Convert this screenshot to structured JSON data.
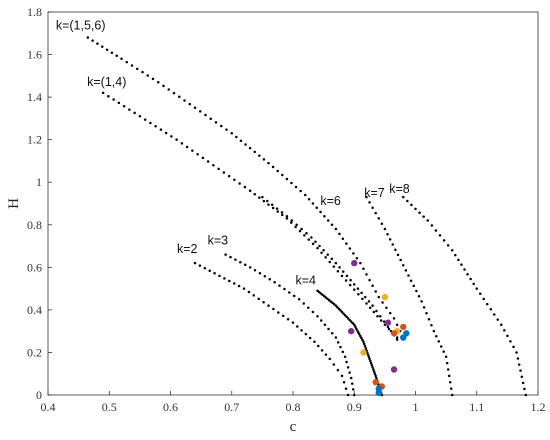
{
  "chart_data": {
    "type": "scatter",
    "title": "",
    "xlabel": "c",
    "ylabel": "H",
    "xlim": [
      0.4,
      1.2
    ],
    "ylim": [
      0,
      1.8
    ],
    "xticks": [
      "0.4",
      "0.5",
      "0.6",
      "0.7",
      "0.8",
      "0.9",
      "1",
      "1.1",
      "1.2"
    ],
    "yticks": [
      "0",
      "0.2",
      "0.4",
      "0.6",
      "0.8",
      "1",
      "1.2",
      "1.4",
      "1.6",
      "1.8"
    ],
    "grid": false,
    "series": [
      {
        "name": "k=(1,5,6)",
        "points": [
          [
            0.465,
            1.68
          ],
          [
            0.52,
            1.58
          ],
          [
            0.58,
            1.47
          ],
          [
            0.64,
            1.35
          ],
          [
            0.7,
            1.23
          ],
          [
            0.76,
            1.09
          ],
          [
            0.82,
            0.94
          ],
          [
            0.87,
            0.78
          ],
          [
            0.91,
            0.62
          ],
          [
            0.94,
            0.46
          ],
          [
            0.965,
            0.36
          ],
          [
            0.975,
            0.3
          ]
        ]
      },
      {
        "name": "k=(1,4)",
        "points": [
          [
            0.49,
            1.42
          ],
          [
            0.55,
            1.31
          ],
          [
            0.61,
            1.2
          ],
          [
            0.67,
            1.08
          ],
          [
            0.73,
            0.96
          ],
          [
            0.79,
            0.83
          ],
          [
            0.84,
            0.69
          ],
          [
            0.88,
            0.56
          ],
          [
            0.92,
            0.43
          ],
          [
            0.95,
            0.33
          ],
          [
            0.97,
            0.27
          ]
        ]
      },
      {
        "name": "k=2",
        "points": [
          [
            0.64,
            0.62
          ],
          [
            0.68,
            0.56
          ],
          [
            0.72,
            0.5
          ],
          [
            0.76,
            0.42
          ],
          [
            0.8,
            0.34
          ],
          [
            0.835,
            0.25
          ],
          [
            0.86,
            0.17
          ],
          [
            0.88,
            0.09
          ],
          [
            0.89,
            0.0
          ]
        ]
      },
      {
        "name": "k=3",
        "points": [
          [
            0.69,
            0.66
          ],
          [
            0.73,
            0.6
          ],
          [
            0.77,
            0.53
          ],
          [
            0.81,
            0.45
          ],
          [
            0.84,
            0.37
          ],
          [
            0.87,
            0.27
          ],
          [
            0.885,
            0.18
          ],
          [
            0.895,
            0.08
          ],
          [
            0.9,
            0.0
          ]
        ]
      },
      {
        "name": "k=4",
        "points": [
          [
            0.84,
            0.49
          ],
          [
            0.87,
            0.42
          ],
          [
            0.9,
            0.33
          ],
          [
            0.915,
            0.25
          ],
          [
            0.925,
            0.17
          ],
          [
            0.935,
            0.09
          ],
          [
            0.945,
            0.0
          ]
        ]
      },
      {
        "name": "k=6",
        "points": [
          [
            0.75,
            0.93
          ],
          [
            0.79,
            0.84
          ],
          [
            0.83,
            0.74
          ],
          [
            0.87,
            0.62
          ],
          [
            0.9,
            0.52
          ],
          [
            0.93,
            0.42
          ],
          [
            0.955,
            0.32
          ],
          [
            0.97,
            0.26
          ]
        ]
      },
      {
        "name": "k=7",
        "points": [
          [
            0.92,
            0.93
          ],
          [
            0.95,
            0.78
          ],
          [
            0.98,
            0.61
          ],
          [
            1.01,
            0.44
          ],
          [
            1.03,
            0.3
          ],
          [
            1.05,
            0.18
          ],
          [
            1.06,
            0.0
          ]
        ]
      },
      {
        "name": "k=8",
        "points": [
          [
            0.98,
            0.93
          ],
          [
            1.02,
            0.82
          ],
          [
            1.06,
            0.68
          ],
          [
            1.1,
            0.5
          ],
          [
            1.14,
            0.33
          ],
          [
            1.165,
            0.2
          ],
          [
            1.18,
            0.0
          ]
        ]
      }
    ],
    "markers": [
      {
        "color": "#7e2f8e",
        "points": [
          [
            0.9,
            0.62
          ],
          [
            0.895,
            0.3
          ],
          [
            0.955,
            0.34
          ],
          [
            0.965,
            0.12
          ]
        ]
      },
      {
        "color": "#edb120",
        "points": [
          [
            0.95,
            0.46
          ],
          [
            0.915,
            0.2
          ],
          [
            0.97,
            0.3
          ]
        ]
      },
      {
        "color": "#d95319",
        "points": [
          [
            0.98,
            0.32
          ],
          [
            0.935,
            0.06
          ],
          [
            0.945,
            0.04
          ],
          [
            0.965,
            0.29
          ]
        ]
      },
      {
        "color": "#0072bd",
        "points": [
          [
            0.985,
            0.29
          ],
          [
            0.98,
            0.27
          ],
          [
            0.94,
            0.03
          ],
          [
            0.94,
            0.01
          ]
        ]
      }
    ]
  }
}
